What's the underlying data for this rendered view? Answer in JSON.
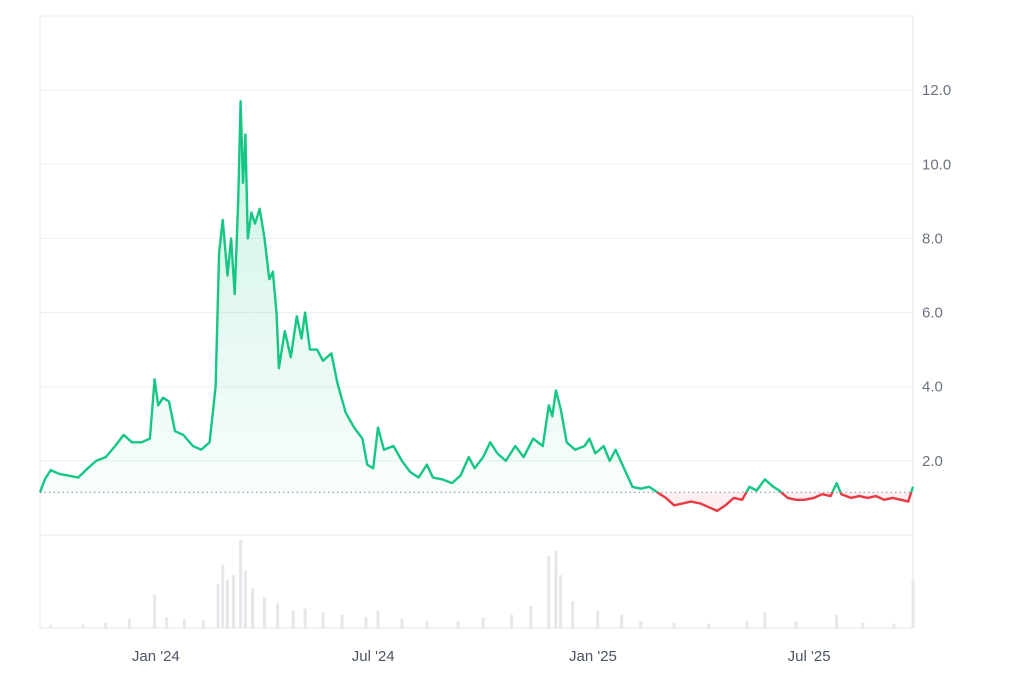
{
  "chart_data": {
    "type": "area",
    "title": "",
    "xlabel": "",
    "ylabel": "",
    "ylim": [
      0,
      14
    ],
    "grid": true,
    "baseline": 1.15,
    "colors": {
      "above": "#16c784",
      "below": "#ea3943",
      "grid": "#eeeeee",
      "baseline": "#9ca3af",
      "volume": "#e5e7eb"
    },
    "y_ticks": [
      {
        "value": 2,
        "label": "2.0"
      },
      {
        "value": 4,
        "label": "4.0"
      },
      {
        "value": 6,
        "label": "6.0"
      },
      {
        "value": 8,
        "label": "8.0"
      },
      {
        "value": 10,
        "label": "10.0"
      },
      {
        "value": 12,
        "label": "12.0"
      }
    ],
    "x_ticks": [
      {
        "date": "2024-01-01",
        "label": "Jan '24"
      },
      {
        "date": "2024-07-01",
        "label": "Jul '24"
      },
      {
        "date": "2025-01-01",
        "label": "Jan '25"
      },
      {
        "date": "2025-07-01",
        "label": "Jul '25"
      }
    ],
    "xlim": [
      "2023-09-26",
      "2025-09-26"
    ],
    "series": [
      {
        "values": [
          [
            "2023-09-26",
            1.15
          ],
          [
            "2023-09-30",
            1.5
          ],
          [
            "2023-10-05",
            1.75
          ],
          [
            "2023-10-12",
            1.65
          ],
          [
            "2023-10-20",
            1.6
          ],
          [
            "2023-10-28",
            1.55
          ],
          [
            "2023-11-05",
            1.8
          ],
          [
            "2023-11-12",
            2.0
          ],
          [
            "2023-11-20",
            2.1
          ],
          [
            "2023-11-28",
            2.4
          ],
          [
            "2023-12-05",
            2.7
          ],
          [
            "2023-12-12",
            2.5
          ],
          [
            "2023-12-20",
            2.5
          ],
          [
            "2023-12-27",
            2.6
          ],
          [
            "2023-12-31",
            4.2
          ],
          [
            "2024-01-03",
            3.5
          ],
          [
            "2024-01-07",
            3.7
          ],
          [
            "2024-01-12",
            3.6
          ],
          [
            "2024-01-17",
            2.8
          ],
          [
            "2024-01-24",
            2.7
          ],
          [
            "2024-02-01",
            2.4
          ],
          [
            "2024-02-08",
            2.3
          ],
          [
            "2024-02-15",
            2.5
          ],
          [
            "2024-02-20",
            4.0
          ],
          [
            "2024-02-23",
            7.6
          ],
          [
            "2024-02-26",
            8.5
          ],
          [
            "2024-03-01",
            7.0
          ],
          [
            "2024-03-04",
            8.0
          ],
          [
            "2024-03-07",
            6.5
          ],
          [
            "2024-03-10",
            9.0
          ],
          [
            "2024-03-12",
            11.7
          ],
          [
            "2024-03-14",
            9.5
          ],
          [
            "2024-03-16",
            10.8
          ],
          [
            "2024-03-18",
            8.0
          ],
          [
            "2024-03-21",
            8.7
          ],
          [
            "2024-03-24",
            8.4
          ],
          [
            "2024-03-28",
            8.8
          ],
          [
            "2024-04-01",
            8.0
          ],
          [
            "2024-04-05",
            6.9
          ],
          [
            "2024-04-08",
            7.1
          ],
          [
            "2024-04-11",
            6.0
          ],
          [
            "2024-04-13",
            4.5
          ],
          [
            "2024-04-18",
            5.5
          ],
          [
            "2024-04-23",
            4.8
          ],
          [
            "2024-04-28",
            5.9
          ],
          [
            "2024-05-02",
            5.3
          ],
          [
            "2024-05-05",
            6.0
          ],
          [
            "2024-05-09",
            5.0
          ],
          [
            "2024-05-15",
            5.0
          ],
          [
            "2024-05-20",
            4.7
          ],
          [
            "2024-05-27",
            4.9
          ],
          [
            "2024-06-01",
            4.1
          ],
          [
            "2024-06-08",
            3.3
          ],
          [
            "2024-06-15",
            2.9
          ],
          [
            "2024-06-22",
            2.6
          ],
          [
            "2024-06-26",
            1.9
          ],
          [
            "2024-07-01",
            1.8
          ],
          [
            "2024-07-05",
            2.9
          ],
          [
            "2024-07-10",
            2.3
          ],
          [
            "2024-07-18",
            2.4
          ],
          [
            "2024-07-25",
            2.0
          ],
          [
            "2024-08-01",
            1.7
          ],
          [
            "2024-08-08",
            1.55
          ],
          [
            "2024-08-15",
            1.9
          ],
          [
            "2024-08-20",
            1.55
          ],
          [
            "2024-08-28",
            1.5
          ],
          [
            "2024-09-05",
            1.4
          ],
          [
            "2024-09-12",
            1.6
          ],
          [
            "2024-09-19",
            2.1
          ],
          [
            "2024-09-24",
            1.8
          ],
          [
            "2024-10-01",
            2.1
          ],
          [
            "2024-10-07",
            2.5
          ],
          [
            "2024-10-13",
            2.2
          ],
          [
            "2024-10-20",
            2.0
          ],
          [
            "2024-10-28",
            2.4
          ],
          [
            "2024-11-04",
            2.1
          ],
          [
            "2024-11-12",
            2.6
          ],
          [
            "2024-11-20",
            2.4
          ],
          [
            "2024-11-25",
            3.5
          ],
          [
            "2024-11-28",
            3.2
          ],
          [
            "2024-12-01",
            3.9
          ],
          [
            "2024-12-05",
            3.4
          ],
          [
            "2024-12-10",
            2.5
          ],
          [
            "2024-12-17",
            2.3
          ],
          [
            "2024-12-25",
            2.4
          ],
          [
            "2024-12-29",
            2.6
          ],
          [
            "2025-01-03",
            2.2
          ],
          [
            "2025-01-10",
            2.4
          ],
          [
            "2025-01-15",
            2.0
          ],
          [
            "2025-01-20",
            2.3
          ],
          [
            "2025-01-27",
            1.8
          ],
          [
            "2025-02-03",
            1.3
          ],
          [
            "2025-02-10",
            1.25
          ],
          [
            "2025-02-17",
            1.3
          ],
          [
            "2025-02-24",
            1.15
          ],
          [
            "2025-03-03",
            1.0
          ],
          [
            "2025-03-10",
            0.8
          ],
          [
            "2025-03-17",
            0.85
          ],
          [
            "2025-03-24",
            0.9
          ],
          [
            "2025-04-01",
            0.85
          ],
          [
            "2025-04-08",
            0.75
          ],
          [
            "2025-04-15",
            0.65
          ],
          [
            "2025-04-22",
            0.8
          ],
          [
            "2025-04-29",
            1.0
          ],
          [
            "2025-05-06",
            0.95
          ],
          [
            "2025-05-12",
            1.3
          ],
          [
            "2025-05-18",
            1.2
          ],
          [
            "2025-05-25",
            1.5
          ],
          [
            "2025-06-01",
            1.3
          ],
          [
            "2025-06-06",
            1.2
          ],
          [
            "2025-06-13",
            1.0
          ],
          [
            "2025-06-20",
            0.95
          ],
          [
            "2025-06-27",
            0.95
          ],
          [
            "2025-07-05",
            1.0
          ],
          [
            "2025-07-12",
            1.1
          ],
          [
            "2025-07-19",
            1.05
          ],
          [
            "2025-07-24",
            1.4
          ],
          [
            "2025-07-28",
            1.1
          ],
          [
            "2025-08-05",
            1.0
          ],
          [
            "2025-08-12",
            1.05
          ],
          [
            "2025-08-19",
            1.0
          ],
          [
            "2025-08-26",
            1.05
          ],
          [
            "2025-09-02",
            0.95
          ],
          [
            "2025-09-09",
            1.0
          ],
          [
            "2025-09-16",
            0.95
          ],
          [
            "2025-09-22",
            0.9
          ],
          [
            "2025-09-26",
            1.3
          ]
        ]
      }
    ],
    "volume": [
      [
        "2023-10-05",
        0.03
      ],
      [
        "2023-11-01",
        0.04
      ],
      [
        "2023-11-20",
        0.06
      ],
      [
        "2023-12-10",
        0.1
      ],
      [
        "2023-12-31",
        0.38
      ],
      [
        "2024-01-10",
        0.12
      ],
      [
        "2024-01-25",
        0.1
      ],
      [
        "2024-02-10",
        0.09
      ],
      [
        "2024-02-22",
        0.5
      ],
      [
        "2024-02-26",
        0.72
      ],
      [
        "2024-03-01",
        0.55
      ],
      [
        "2024-03-06",
        0.6
      ],
      [
        "2024-03-12",
        1.0
      ],
      [
        "2024-03-16",
        0.65
      ],
      [
        "2024-03-22",
        0.45
      ],
      [
        "2024-04-01",
        0.35
      ],
      [
        "2024-04-12",
        0.28
      ],
      [
        "2024-04-25",
        0.2
      ],
      [
        "2024-05-05",
        0.22
      ],
      [
        "2024-05-20",
        0.18
      ],
      [
        "2024-06-05",
        0.15
      ],
      [
        "2024-06-25",
        0.12
      ],
      [
        "2024-07-05",
        0.2
      ],
      [
        "2024-07-25",
        0.1
      ],
      [
        "2024-08-15",
        0.08
      ],
      [
        "2024-09-10",
        0.07
      ],
      [
        "2024-10-01",
        0.12
      ],
      [
        "2024-10-25",
        0.15
      ],
      [
        "2024-11-10",
        0.25
      ],
      [
        "2024-11-25",
        0.82
      ],
      [
        "2024-12-01",
        0.88
      ],
      [
        "2024-12-05",
        0.6
      ],
      [
        "2024-12-15",
        0.3
      ],
      [
        "2025-01-05",
        0.2
      ],
      [
        "2025-01-25",
        0.15
      ],
      [
        "2025-02-10",
        0.08
      ],
      [
        "2025-03-10",
        0.06
      ],
      [
        "2025-04-08",
        0.05
      ],
      [
        "2025-05-10",
        0.08
      ],
      [
        "2025-05-25",
        0.18
      ],
      [
        "2025-06-20",
        0.07
      ],
      [
        "2025-07-24",
        0.15
      ],
      [
        "2025-08-15",
        0.06
      ],
      [
        "2025-09-10",
        0.05
      ],
      [
        "2025-09-26",
        0.55
      ]
    ]
  }
}
